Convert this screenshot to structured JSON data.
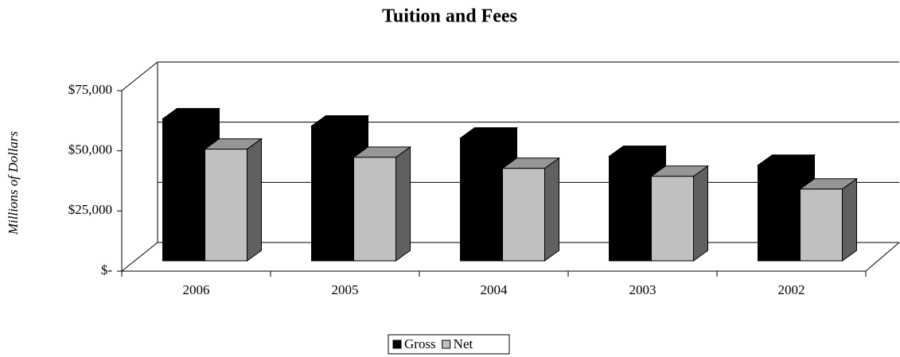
{
  "chart_data": {
    "type": "bar3d",
    "title": "Tuition and Fees",
    "y_label": "Millions of Dollars",
    "categories": [
      "2006",
      "2005",
      "2004",
      "2003",
      "2002"
    ],
    "series": [
      {
        "name": "Gross",
        "color": "#000000",
        "values": [
          59000,
          56000,
          51000,
          43400,
          39700
        ]
      },
      {
        "name": "Net",
        "color": "#c0c0c0",
        "values": [
          46400,
          43000,
          38400,
          35100,
          29800
        ]
      }
    ],
    "ylim": [
      0,
      75000
    ],
    "yticks": [
      {
        "value": 0,
        "label": "$-"
      },
      {
        "value": 25000,
        "label": "$25,000"
      },
      {
        "value": 50000,
        "label": "$50,000"
      },
      {
        "value": 75000,
        "label": "$75,000"
      }
    ],
    "grid": true,
    "legend": "bottom"
  }
}
